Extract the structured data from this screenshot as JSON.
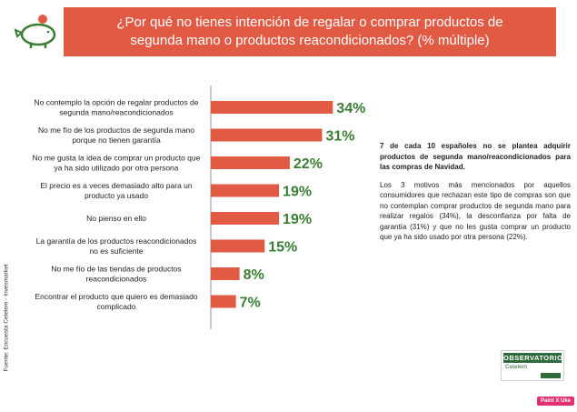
{
  "header": {
    "title": "¿Por qué no tienes intención de regalar o comprar productos de segunda mano o productos reacondicionados? (% múltiple)"
  },
  "source": "Fuente: Encuesta Cetelem - Invesmarket",
  "side_text": {
    "highlight": "7 de cada 10 españoles no se plantea adquirir productos de segunda mano/reacondicionados para las compras de Navidad.",
    "body": "Los 3 motivos más mencionados por aquellos consumidores que rechazan este tipo de compras son que no contemplan comprar productos de segunda mano para realizar regalos (34%), la desconfianza por falta de garantía (31%) y que no les gusta comprar un producto que ya ha sido usado por otra persona (22%)."
  },
  "logo": {
    "name": "OBSERVATORIO",
    "sub": "Cetelem"
  },
  "badge": "Paint X Uke",
  "colors": {
    "bar": "#e05a44",
    "value_text": "#3a7d34",
    "title_bg": "#e05a44"
  },
  "chart_data": {
    "type": "bar",
    "orientation": "horizontal",
    "categories": [
      [
        "No contemplo la opción de regalar productos de",
        "segunda mano/reacondicionados"
      ],
      [
        "No me fío de los productos de segunda mano",
        "porque no tienen garantía"
      ],
      [
        "No me gusta la idea de comprar un producto que",
        "ya ha sido utilizado por otra persona"
      ],
      [
        "El precio es a veces demasiado alto para un",
        "producto ya usado"
      ],
      [
        "No pienso en ello"
      ],
      [
        "La garantía de los productos reacondicionados",
        "no es suficiente"
      ],
      [
        "No me fío de las tiendas de productos",
        "reacondicionados"
      ],
      [
        "Encontrar el producto que quiero es demasiado",
        "complicado"
      ]
    ],
    "values": [
      34,
      31,
      22,
      19,
      19,
      15,
      8,
      7
    ],
    "value_labels": [
      "34%",
      "31%",
      "22%",
      "19%",
      "19%",
      "15%",
      "8%",
      "7%"
    ],
    "xlim": [
      0,
      40
    ],
    "grid": false
  }
}
